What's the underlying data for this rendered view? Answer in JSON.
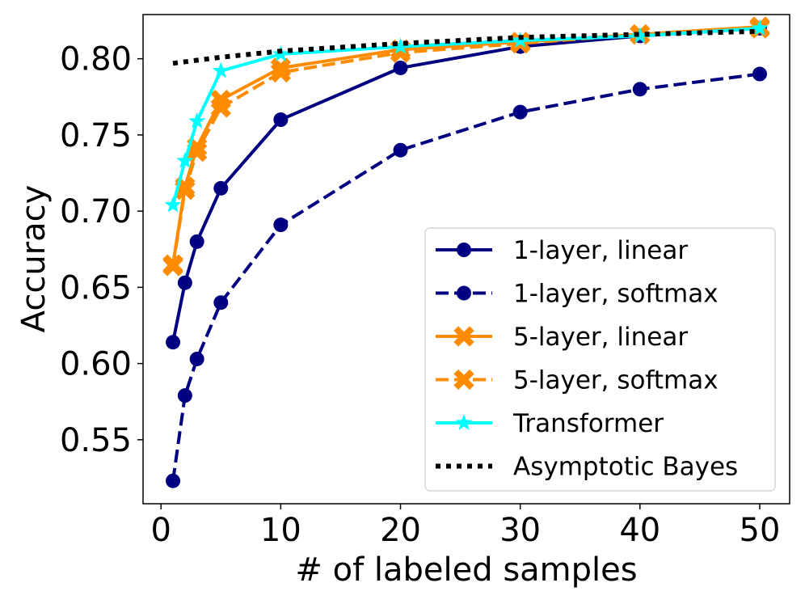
{
  "chart_data": {
    "type": "line",
    "title": "",
    "xlabel": "# of labeled samples",
    "ylabel": "Accuracy",
    "xlim": [
      -1.5,
      52.5
    ],
    "ylim": [
      0.508,
      0.829
    ],
    "xticks": [
      0,
      10,
      20,
      30,
      40,
      50
    ],
    "yticks": [
      0.55,
      0.6,
      0.65,
      0.7,
      0.75,
      0.8
    ],
    "xtick_labels": [
      "0",
      "10",
      "20",
      "30",
      "40",
      "50"
    ],
    "ytick_labels": [
      "0.55",
      "0.60",
      "0.65",
      "0.70",
      "0.75",
      "0.80"
    ],
    "grid": false,
    "legend_position": "lower-right",
    "series": [
      {
        "name": "1-layer, linear",
        "color": "#000080",
        "linestyle": "solid",
        "marker": "circle",
        "x": [
          1,
          2,
          3,
          5,
          10,
          20,
          30,
          40,
          50
        ],
        "y": [
          0.614,
          0.653,
          0.68,
          0.715,
          0.76,
          0.794,
          0.808,
          0.815,
          0.82
        ]
      },
      {
        "name": "1-layer, softmax",
        "color": "#000080",
        "linestyle": "dashed",
        "marker": "circle",
        "x": [
          1,
          2,
          3,
          5,
          10,
          20,
          30,
          40,
          50
        ],
        "y": [
          0.523,
          0.579,
          0.603,
          0.64,
          0.691,
          0.74,
          0.765,
          0.78,
          0.79
        ]
      },
      {
        "name": "5-layer, linear",
        "color": "#ff8c00",
        "linestyle": "solid",
        "marker": "x",
        "x": [
          1,
          2,
          3,
          5,
          10,
          20,
          30,
          40,
          50
        ],
        "y": [
          0.665,
          0.716,
          0.742,
          0.773,
          0.794,
          0.806,
          0.811,
          0.816,
          0.821
        ]
      },
      {
        "name": "5-layer, softmax",
        "color": "#ff8c00",
        "linestyle": "dashed",
        "marker": "x",
        "x": [
          1,
          2,
          3,
          5,
          10,
          20,
          30,
          40,
          50
        ],
        "y": [
          0.664,
          0.714,
          0.739,
          0.768,
          0.791,
          0.804,
          0.81,
          0.816,
          0.82
        ]
      },
      {
        "name": "Transformer",
        "color": "#00ffff",
        "linestyle": "solid",
        "marker": "star",
        "x": [
          1,
          2,
          3,
          5,
          10,
          20,
          30,
          40,
          50
        ],
        "y": [
          0.704,
          0.733,
          0.759,
          0.792,
          0.803,
          0.808,
          0.812,
          0.815,
          0.82
        ]
      },
      {
        "name": "Asymptotic Bayes",
        "color": "#000000",
        "linestyle": "dotted",
        "marker": "none",
        "x": [
          1,
          5,
          10,
          20,
          30,
          40,
          50
        ],
        "y": [
          0.797,
          0.801,
          0.805,
          0.81,
          0.814,
          0.816,
          0.818
        ]
      }
    ]
  }
}
